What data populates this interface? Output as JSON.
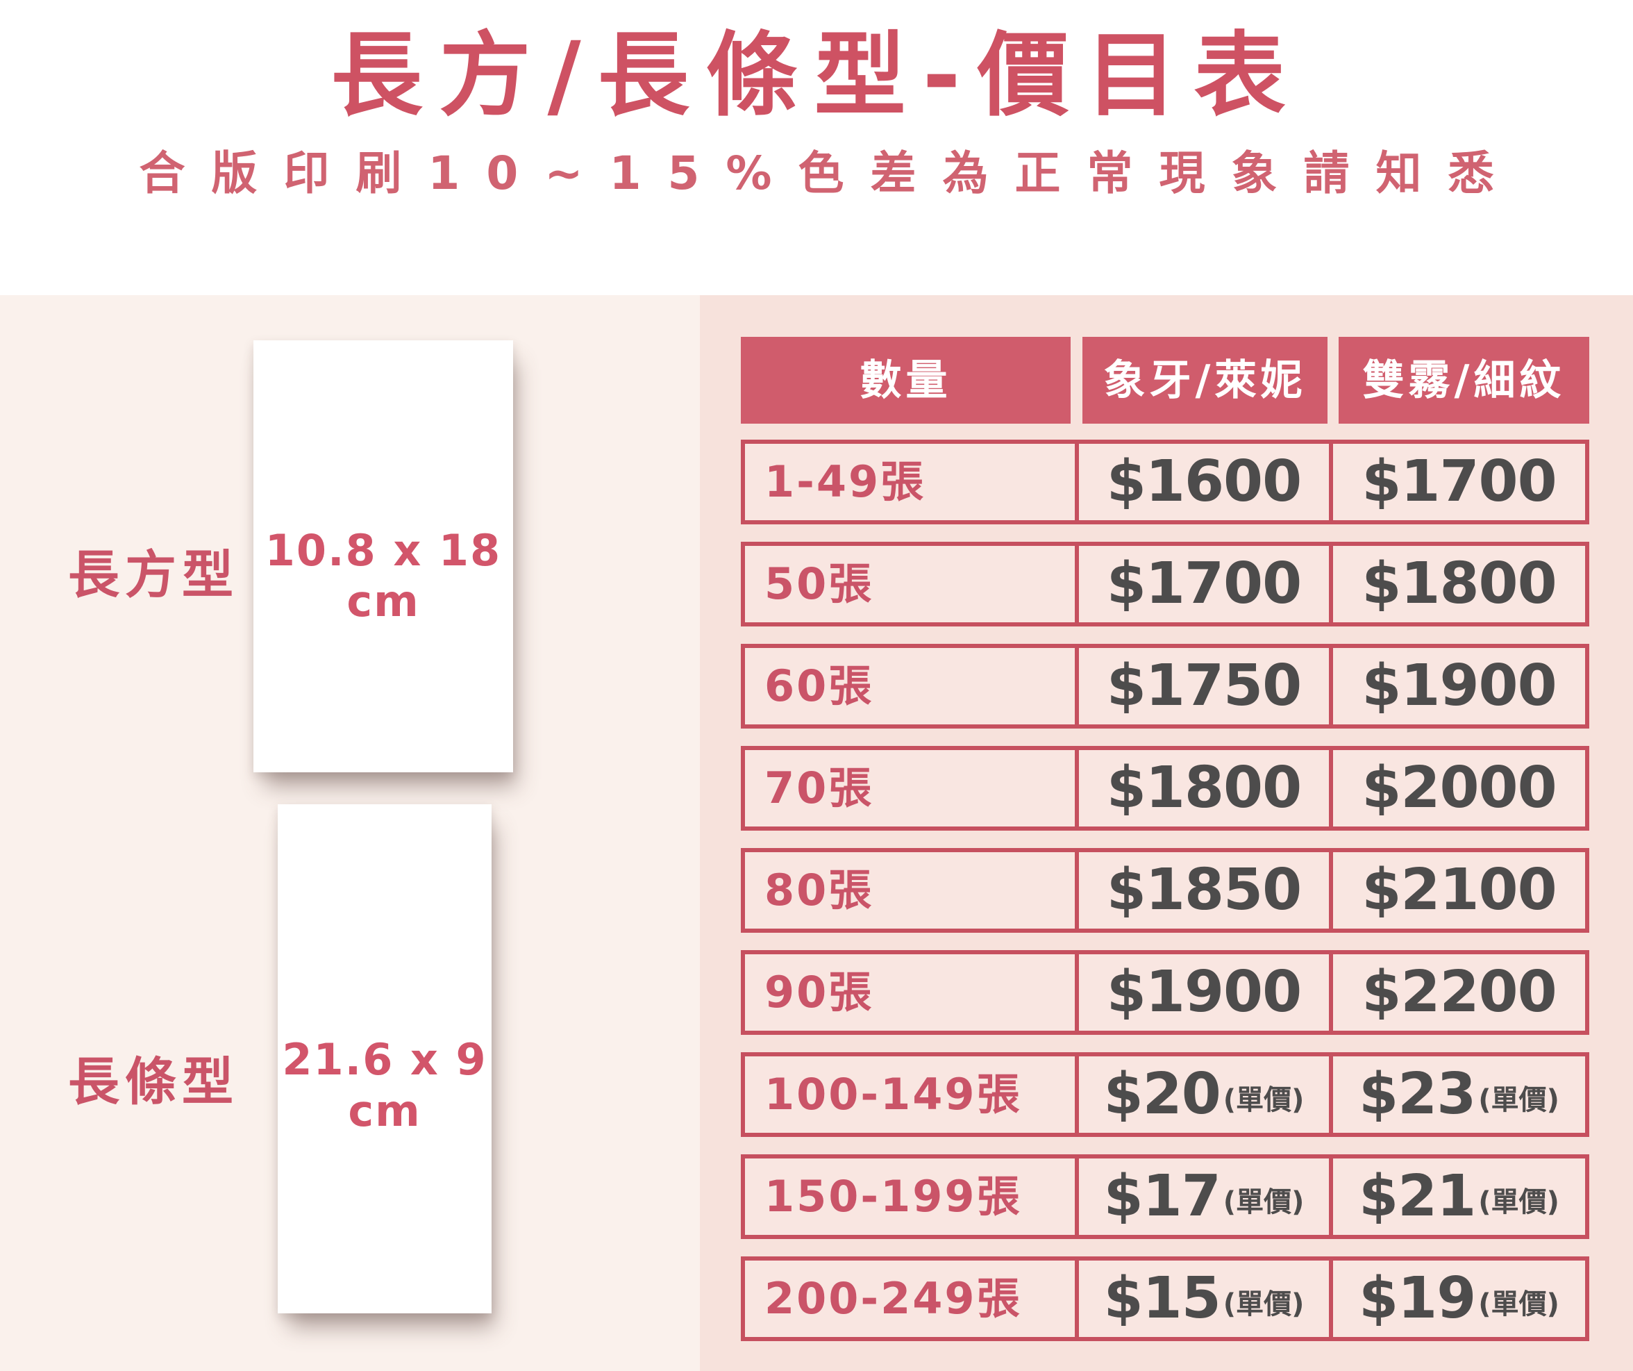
{
  "title": "長方/長條型-價目表",
  "subtitle": "合版印刷10~15%色差為正常現象請知悉",
  "colors": {
    "header_bg": "#d05c6c",
    "border_red": "#c6505f",
    "title_red": "#ce5263",
    "subtitle_red": "#d06371",
    "quantity_red": "#ca5468",
    "price_gray": "#4d4c4c",
    "left_panel_bg": "#faf1ec",
    "right_panel_bg": "#f7e2dc",
    "card_bg": "#ffffff"
  },
  "shapes": [
    {
      "label": "長方型",
      "size": "10.8 x 18",
      "unit": "cm"
    },
    {
      "label": "長條型",
      "size": "21.6 x 9",
      "unit": "cm"
    }
  ],
  "table": {
    "headers": [
      "數量",
      "象牙/萊妮",
      "雙霧/細紋"
    ],
    "rows": [
      {
        "qty": "1-49張",
        "price1": "$1600",
        "unit1": "",
        "price2": "$1700",
        "unit2": ""
      },
      {
        "qty": "50張",
        "price1": "$1700",
        "unit1": "",
        "price2": "$1800",
        "unit2": ""
      },
      {
        "qty": "60張",
        "price1": "$1750",
        "unit1": "",
        "price2": "$1900",
        "unit2": ""
      },
      {
        "qty": "70張",
        "price1": "$1800",
        "unit1": "",
        "price2": "$2000",
        "unit2": ""
      },
      {
        "qty": "80張",
        "price1": "$1850",
        "unit1": "",
        "price2": "$2100",
        "unit2": ""
      },
      {
        "qty": "90張",
        "price1": "$1900",
        "unit1": "",
        "price2": "$2200",
        "unit2": ""
      },
      {
        "qty": "100-149張",
        "price1": "$20",
        "unit1": "(單價)",
        "price2": "$23",
        "unit2": "(單價)"
      },
      {
        "qty": "150-199張",
        "price1": "$17",
        "unit1": "(單價)",
        "price2": "$21",
        "unit2": "(單價)"
      },
      {
        "qty": "200-249張",
        "price1": "$15",
        "unit1": "(單價)",
        "price2": "$19",
        "unit2": "(單價)"
      }
    ]
  },
  "chart_data": {
    "type": "table",
    "title": "長方/長條型-價目表",
    "subtitle": "合版印刷10~15%色差為正常現象請知悉",
    "columns": [
      "數量",
      "象牙/萊妮",
      "雙霧/細紋"
    ],
    "rows": [
      [
        "1-49張",
        "$1600",
        "$1700"
      ],
      [
        "50張",
        "$1700",
        "$1800"
      ],
      [
        "60張",
        "$1750",
        "$1900"
      ],
      [
        "70張",
        "$1800",
        "$2000"
      ],
      [
        "80張",
        "$1850",
        "$2100"
      ],
      [
        "90張",
        "$1900",
        "$2200"
      ],
      [
        "100-149張",
        "$20(單價)",
        "$23(單價)"
      ],
      [
        "150-199張",
        "$17(單價)",
        "$21(單價)"
      ],
      [
        "200-249張",
        "$15(單價)",
        "$19(單價)"
      ]
    ],
    "annotations": [
      "長方型 10.8 x 18 cm",
      "長條型 21.6 x 9 cm"
    ]
  }
}
